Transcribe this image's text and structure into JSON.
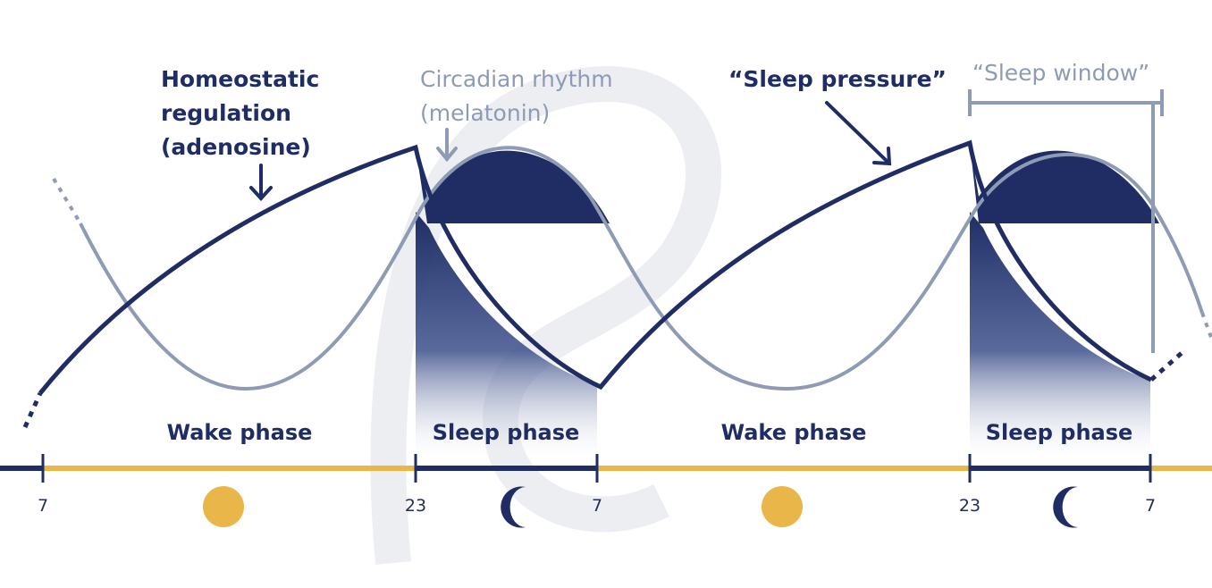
{
  "labels": {
    "homeostatic": [
      "Homeostatic",
      "regulation",
      "(adenosine)"
    ],
    "circadian": [
      "Circadian rhythm",
      "(melatonin)"
    ],
    "sleep_pressure": "“Sleep pressure”",
    "sleep_window": "“Sleep window”"
  },
  "phases": {
    "wake_1": "Wake phase",
    "sleep_1": "Sleep phase",
    "wake_2": "Wake phase",
    "sleep_2": "Sleep phase"
  },
  "ticks": [
    "7",
    "23",
    "7",
    "23",
    "7"
  ],
  "icons": {
    "sun_1": "sun-icon",
    "moon_1": "moon-icon",
    "sun_2": "sun-icon",
    "moon_2": "moon-icon"
  },
  "colors": {
    "navy": "#1f2d64",
    "light_curve": "#8e9bb5",
    "timeline_day": "#e9b64a",
    "sun": "#e9b64a",
    "watermark": "#eceef2"
  }
}
